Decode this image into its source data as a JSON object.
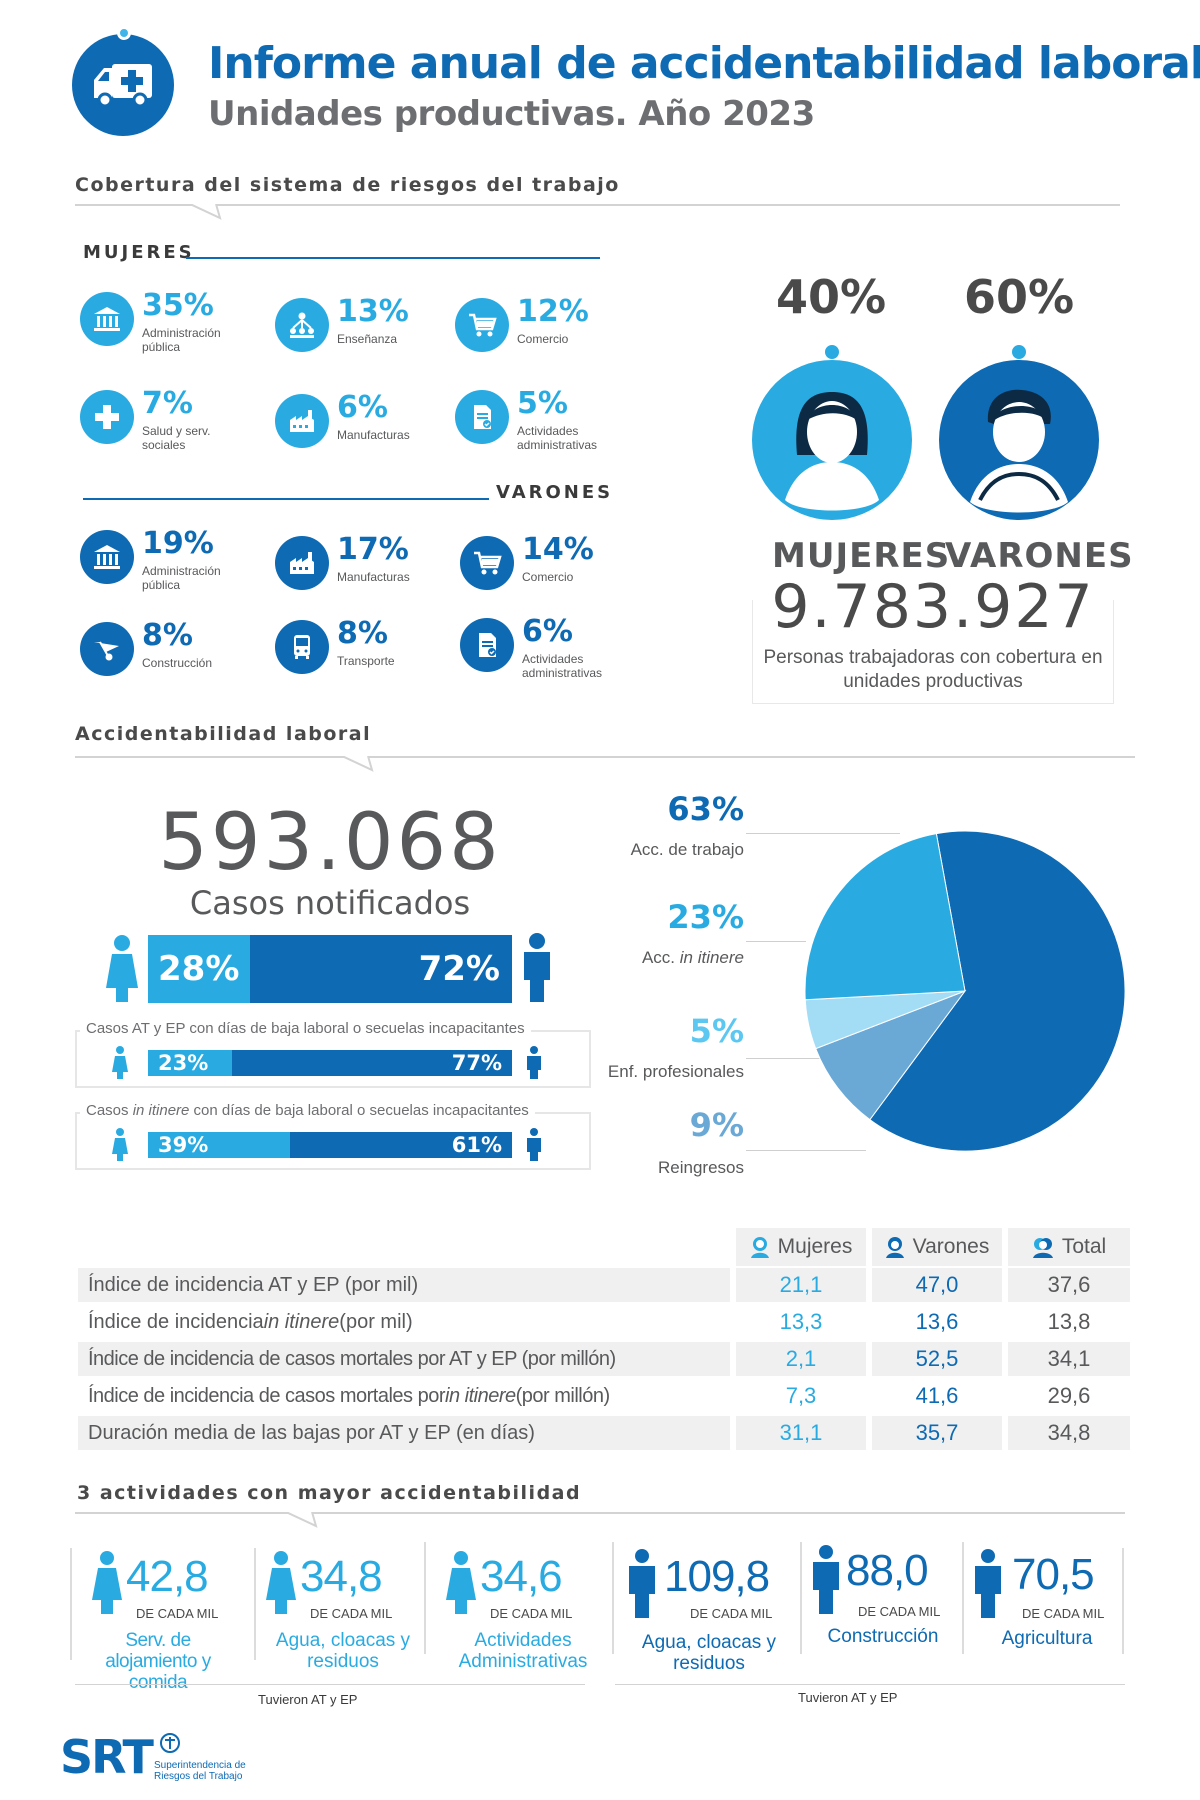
{
  "header": {
    "title": "Informe anual de accidentabilidad laboral",
    "subtitle": "Unidades productivas. Año 2023"
  },
  "cobertura": {
    "section_title": "Cobertura del sistema de riesgos del trabajo",
    "mujeres_label": "MUJERES",
    "varones_label": "VARONES",
    "mujeres_sectors": [
      {
        "pct": "35%",
        "label": "Administración pública",
        "icon": "bank-icon"
      },
      {
        "pct": "13%",
        "label": "Enseñanza",
        "icon": "classroom-icon"
      },
      {
        "pct": "12%",
        "label": "Comercio",
        "icon": "cart-icon"
      },
      {
        "pct": "7%",
        "label": "Salud y serv. sociales",
        "icon": "health-cross-icon"
      },
      {
        "pct": "6%",
        "label": "Manufacturas",
        "icon": "factory-icon"
      },
      {
        "pct": "5%",
        "label": "Actividades administrativas",
        "icon": "document-icon"
      }
    ],
    "varones_sectors": [
      {
        "pct": "19%",
        "label": "Administración pública",
        "icon": "bank-icon"
      },
      {
        "pct": "17%",
        "label": "Manufacturas",
        "icon": "factory-icon"
      },
      {
        "pct": "14%",
        "label": "Comercio",
        "icon": "cart-icon"
      },
      {
        "pct": "8%",
        "label": "Construcción",
        "icon": "wheelbarrow-icon"
      },
      {
        "pct": "8%",
        "label": "Transporte",
        "icon": "bus-icon"
      },
      {
        "pct": "6%",
        "label": "Actividades administrativas",
        "icon": "document-icon"
      }
    ],
    "gender_split": {
      "mujeres_pct": "40%",
      "varones_pct": "60%",
      "mujeres_label": "MUJERES",
      "varones_label": "VARONES"
    },
    "total_workers": "9.783.927",
    "total_caption": "Personas trabajadoras con cobertura en unidades productivas",
    "colors": {
      "light_blue": "#29abe2",
      "dark_blue": "#0d6ab3"
    }
  },
  "accidentabilidad": {
    "section_title": "Accidentabilidad laboral",
    "cases_number": "593.068",
    "cases_label": "Casos notificados",
    "gender_bar": {
      "mujeres": "28%",
      "varones": "72%",
      "mujeres_value": 28,
      "varones_value": 72
    },
    "sub_bars": [
      {
        "caption_pre": "Casos AT y EP con días de baja laboral o secuelas incapacitantes",
        "caption_em": "",
        "caption_post": "",
        "mujeres": "23%",
        "varones": "77%",
        "mujeres_value": 23
      },
      {
        "caption_pre": "Casos ",
        "caption_em": "in itinere",
        "caption_post": " con días de baja laboral o secuelas incapacitantes",
        "mujeres": "39%",
        "varones": "61%",
        "mujeres_value": 39
      }
    ]
  },
  "chart_data": {
    "type": "pie",
    "slices": [
      {
        "pct_label": "63%",
        "label_pre": "Acc. de trabajo",
        "label_em": "",
        "value": 63,
        "color": "#0d6ab3"
      },
      {
        "pct_label": "23%",
        "label_pre": "Acc. ",
        "label_em": "in itinere",
        "value": 23,
        "color": "#29abe2"
      },
      {
        "pct_label": "5%",
        "label_pre": "Enf. profesionales",
        "label_em": "",
        "value": 5,
        "color": "#a3dcf5"
      },
      {
        "pct_label": "9%",
        "label_pre": "Reingresos",
        "label_em": "",
        "value": 9,
        "color": "#6aa8d6"
      }
    ]
  },
  "indices": {
    "columns": [
      "Mujeres",
      "Varones",
      "Total"
    ],
    "rows": [
      {
        "pre": "Índice de incidencia AT y EP (por mil)",
        "em": "",
        "post": "",
        "m": "21,1",
        "v": "47,0",
        "t": "37,6"
      },
      {
        "pre": "Índice de incidencia ",
        "em": "in itinere",
        "post": " (por mil)",
        "m": "13,3",
        "v": "13,6",
        "t": "13,8"
      },
      {
        "pre": "Índice de incidencia de casos mortales por AT y EP (por millón)",
        "em": "",
        "post": "",
        "m": "2,1",
        "v": "52,5",
        "t": "34,1"
      },
      {
        "pre": "Índice de incidencia de casos mortales por ",
        "em": "in itinere",
        "post": " (por millón)",
        "m": "7,3",
        "v": "41,6",
        "t": "29,6"
      },
      {
        "pre": "Duración media de las bajas por AT y EP (en días)",
        "em": "",
        "post": "",
        "m": "31,1",
        "v": "35,7",
        "t": "34,8"
      }
    ]
  },
  "top_activities": {
    "section_title": "3 actividades con mayor accidentabilidad",
    "unit": "DE CADA MIL",
    "footnote": "Tuvieron  AT y EP",
    "mujeres": [
      {
        "value": "42,8",
        "name": "Serv. de alojamiento y comida"
      },
      {
        "value": "34,8",
        "name": "Agua, cloacas y residuos"
      },
      {
        "value": "34,6",
        "name": "Actividades Administrativas"
      }
    ],
    "varones": [
      {
        "value": "109,8",
        "name": "Agua, cloacas y residuos"
      },
      {
        "value": "88,0",
        "name": "Construcción"
      },
      {
        "value": "70,5",
        "name": "Agricultura"
      }
    ]
  },
  "footer": {
    "logo_text": "SRT",
    "org_line1": "Superintendencia de",
    "org_line2": "Riesgos del Trabajo"
  }
}
